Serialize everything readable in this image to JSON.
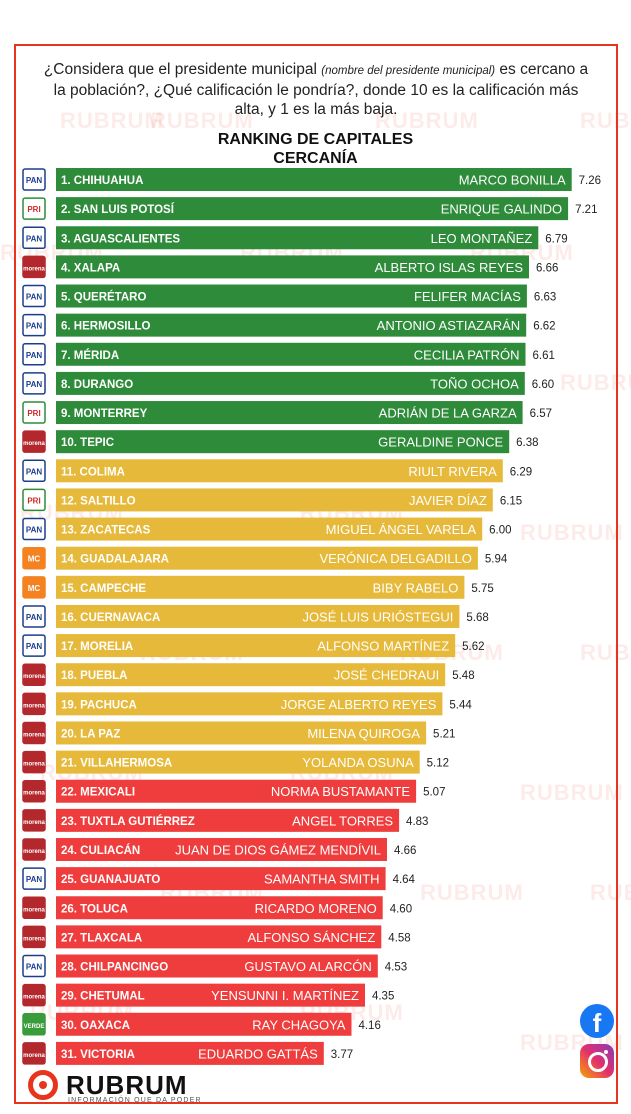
{
  "header": {
    "question_part1": "¿Considera que el presidente municipal ",
    "question_note": "(nombre del presidente municipal)",
    "question_part2": " es cercano a la población?, ¿Qué calificación le pondría?, donde 10 es la calificación más alta, y 1 es la más baja."
  },
  "watermark": "RUBRUM",
  "brand": {
    "logo_text": "RUBRUM",
    "tagline": "INFORMACIÓN QUE DA PODER",
    "facebook": "f"
  },
  "colors": {
    "green": "#2e8b3a",
    "yellow": "#e6b93a",
    "red": "#ef3d3d",
    "accent": "#e8341c"
  },
  "chart_data": {
    "type": "bar",
    "orientation": "horizontal",
    "title": "RANKING DE CAPITALES",
    "subtitle": "CERCANÍA",
    "xlim": [
      0,
      10
    ],
    "grid": false,
    "legend": "none",
    "rows": [
      {
        "rank": "1. CHIHUAHUA",
        "name": "MARCO BONILLA",
        "value": 7.26,
        "value_label": "7.26",
        "party": "PAN",
        "color": "green"
      },
      {
        "rank": "2. SAN LUIS POTOSÍ",
        "name": "ENRIQUE GALINDO",
        "value": 7.21,
        "value_label": "7.21",
        "party": "PRI",
        "color": "green"
      },
      {
        "rank": "3. AGUASCALIENTES",
        "name": "LEO MONTAÑEZ",
        "value": 6.79,
        "value_label": "6.79",
        "party": "PAN",
        "color": "green"
      },
      {
        "rank": "4. XALAPA",
        "name": "ALBERTO ISLAS REYES",
        "value": 6.66,
        "value_label": "6.66",
        "party": "MORENA",
        "color": "green"
      },
      {
        "rank": "5. QUERÉTARO",
        "name": "FELIFER MACÍAS",
        "value": 6.63,
        "value_label": "6.63",
        "party": "PAN",
        "color": "green"
      },
      {
        "rank": "6. HERMOSILLO",
        "name": "ANTONIO ASTIAZARÁN",
        "value": 6.62,
        "value_label": "6.62",
        "party": "PAN",
        "color": "green"
      },
      {
        "rank": "7. MÉRIDA",
        "name": "CECILIA PATRÓN",
        "value": 6.61,
        "value_label": "6.61",
        "party": "PAN",
        "color": "green"
      },
      {
        "rank": "8. DURANGO",
        "name": "TOÑO OCHOA",
        "value": 6.6,
        "value_label": "6.60",
        "party": "PAN",
        "color": "green"
      },
      {
        "rank": "9. MONTERREY",
        "name": "ADRIÁN DE LA GARZA",
        "value": 6.57,
        "value_label": "6.57",
        "party": "PRI",
        "color": "green"
      },
      {
        "rank": "10. TEPIC",
        "name": "GERALDINE PONCE",
        "value": 6.38,
        "value_label": "6.38",
        "party": "MORENA",
        "color": "green"
      },
      {
        "rank": "11. COLIMA",
        "name": "RIULT RIVERA",
        "value": 6.29,
        "value_label": "6.29",
        "party": "PAN",
        "color": "yellow"
      },
      {
        "rank": "12. SALTILLO",
        "name": "JAVIER DÍAZ",
        "value": 6.15,
        "value_label": "6.15",
        "party": "PRI",
        "color": "yellow"
      },
      {
        "rank": "13. ZACATECAS",
        "name": "MIGUEL ÁNGEL VARELA",
        "value": 6.0,
        "value_label": "6.00",
        "party": "PAN",
        "color": "yellow"
      },
      {
        "rank": "14. GUADALAJARA",
        "name": "VERÓNICA DELGADILLO",
        "value": 5.94,
        "value_label": "5.94",
        "party": "MC",
        "color": "yellow"
      },
      {
        "rank": "15. CAMPECHE",
        "name": "BIBY RABELO",
        "value": 5.75,
        "value_label": "5.75",
        "party": "MC",
        "color": "yellow"
      },
      {
        "rank": "16. CUERNAVACA",
        "name": "JOSÉ LUIS URIÓSTEGUI",
        "value": 5.68,
        "value_label": "5.68",
        "party": "PAN",
        "color": "yellow"
      },
      {
        "rank": "17. MORELIA",
        "name": "ALFONSO MARTÍNEZ",
        "value": 5.62,
        "value_label": "5.62",
        "party": "PAN",
        "color": "yellow"
      },
      {
        "rank": "18. PUEBLA",
        "name": "JOSÉ CHEDRAUI",
        "value": 5.48,
        "value_label": "5.48",
        "party": "MORENA",
        "color": "yellow"
      },
      {
        "rank": "19. PACHUCA",
        "name": "JORGE ALBERTO REYES",
        "value": 5.44,
        "value_label": "5.44",
        "party": "MORENA",
        "color": "yellow"
      },
      {
        "rank": "20. LA PAZ",
        "name": "MILENA QUIROGA",
        "value": 5.21,
        "value_label": "5.21",
        "party": "MORENA",
        "color": "yellow"
      },
      {
        "rank": "21. VILLAHERMOSA",
        "name": "YOLANDA OSUNA",
        "value": 5.12,
        "value_label": "5.12",
        "party": "MORENA",
        "color": "yellow"
      },
      {
        "rank": "22. MEXICALI",
        "name": "NORMA BUSTAMANTE",
        "value": 5.07,
        "value_label": "5.07",
        "party": "MORENA",
        "color": "red"
      },
      {
        "rank": "23. TUXTLA GUTIÉRREZ",
        "name": "ANGEL TORRES",
        "value": 4.83,
        "value_label": "4.83",
        "party": "MORENA",
        "color": "red"
      },
      {
        "rank": "24. CULIACÁN",
        "name": "JUAN DE DIOS GÁMEZ MENDÍVIL",
        "value": 4.66,
        "value_label": "4.66",
        "party": "MORENA",
        "color": "red"
      },
      {
        "rank": "25. GUANAJUATO",
        "name": "SAMANTHA SMITH",
        "value": 4.64,
        "value_label": "4.64",
        "party": "PAN",
        "color": "red"
      },
      {
        "rank": "26. TOLUCA",
        "name": "RICARDO MORENO",
        "value": 4.6,
        "value_label": "4.60",
        "party": "MORENA",
        "color": "red"
      },
      {
        "rank": "27. TLAXCALA",
        "name": "ALFONSO SÁNCHEZ",
        "value": 4.58,
        "value_label": "4.58",
        "party": "MORENA",
        "color": "red"
      },
      {
        "rank": "28. CHILPANCINGO",
        "name": "GUSTAVO ALARCÓN",
        "value": 4.53,
        "value_label": "4.53",
        "party": "PAN",
        "color": "red"
      },
      {
        "rank": "29. CHETUMAL",
        "name": "YENSUNNI I. MARTÍNEZ",
        "value": 4.35,
        "value_label": "4.35",
        "party": "MORENA",
        "color": "red"
      },
      {
        "rank": "30. OAXACA",
        "name": "RAY CHAGOYA",
        "value": 4.16,
        "value_label": "4.16",
        "party": "VERDE",
        "color": "red"
      },
      {
        "rank": "31. VICTORIA",
        "name": "EDUARDO GATTÁS",
        "value": 3.77,
        "value_label": "3.77",
        "party": "MORENA",
        "color": "red"
      }
    ]
  }
}
